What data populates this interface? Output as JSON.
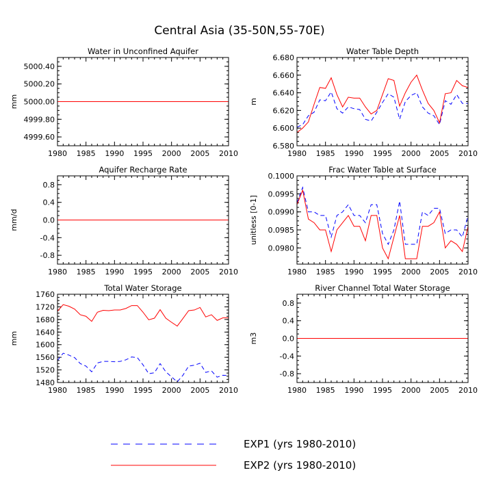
{
  "figure": {
    "title": "Central Asia (35-50N,55-70E)"
  },
  "colors": {
    "exp1": "#0000ff",
    "exp2": "#ff0000",
    "axis": "#000000",
    "background": "#ffffff"
  },
  "legend": {
    "items": [
      {
        "label": "EXP1 (yrs 1980-2010)",
        "style": "dashed",
        "color": "#0000ff"
      },
      {
        "label": "EXP2 (yrs 1980-2010)",
        "style": "solid",
        "color": "#ff0000"
      }
    ]
  },
  "chart_data": [
    {
      "type": "line",
      "title": "Water in Unconfined Aquifer",
      "ylabel": "mm",
      "xlim": [
        1980,
        2010
      ],
      "ylim": [
        4999.5,
        5000.5
      ],
      "xticks": [
        1980,
        1985,
        1990,
        1995,
        2000,
        2005,
        2010
      ],
      "yticks": [
        4999.6,
        4999.8,
        5000.0,
        5000.2,
        5000.4
      ],
      "ytick_labels": [
        "4999.60",
        "4999.80",
        "5000.00",
        "5000.20",
        "5000.40"
      ],
      "x": [
        1980,
        2010
      ],
      "series": [
        {
          "name": "EXP1 (yrs 1980-2010)",
          "values": [
            5000.0,
            5000.0
          ]
        },
        {
          "name": "EXP2 (yrs 1980-2010)",
          "values": [
            5000.0,
            5000.0
          ]
        }
      ]
    },
    {
      "type": "line",
      "title": "Water Table Depth",
      "ylabel": "m",
      "xlim": [
        1980,
        2010
      ],
      "ylim": [
        6.58,
        6.68
      ],
      "xticks": [
        1980,
        1985,
        1990,
        1995,
        2000,
        2005,
        2010
      ],
      "yticks": [
        6.58,
        6.6,
        6.62,
        6.64,
        6.66,
        6.68
      ],
      "ytick_labels": [
        "6.580",
        "6.600",
        "6.620",
        "6.640",
        "6.660",
        "6.680"
      ],
      "x": [
        1980,
        1981,
        1982,
        1983,
        1984,
        1985,
        1986,
        1987,
        1988,
        1989,
        1990,
        1991,
        1992,
        1993,
        1994,
        1995,
        1996,
        1997,
        1998,
        1999,
        2000,
        2001,
        2002,
        2003,
        2004,
        2005,
        2006,
        2007,
        2008,
        2009,
        2010
      ],
      "series": [
        {
          "name": "EXP1 (yrs 1980-2010)",
          "values": [
            6.601,
            6.604,
            6.614,
            6.618,
            6.632,
            6.631,
            6.641,
            6.622,
            6.617,
            6.624,
            6.622,
            6.621,
            6.61,
            6.608,
            6.618,
            6.629,
            6.639,
            6.635,
            6.61,
            6.63,
            6.637,
            6.64,
            6.624,
            6.617,
            6.614,
            6.604,
            6.631,
            6.627,
            6.638,
            6.628,
            6.628
          ]
        },
        {
          "name": "EXP2 (yrs 1980-2010)",
          "values": [
            6.595,
            6.6,
            6.607,
            6.627,
            6.646,
            6.645,
            6.657,
            6.638,
            6.624,
            6.635,
            6.634,
            6.634,
            6.624,
            6.616,
            6.62,
            6.638,
            6.656,
            6.654,
            6.625,
            6.64,
            6.652,
            6.66,
            6.643,
            6.628,
            6.62,
            6.606,
            6.639,
            6.64,
            6.654,
            6.648,
            6.646
          ]
        }
      ]
    },
    {
      "type": "line",
      "title": "Aquifer Recharge Rate",
      "ylabel": "mm/d",
      "xlim": [
        1980,
        2010
      ],
      "ylim": [
        -1.0,
        1.0
      ],
      "xticks": [
        1980,
        1985,
        1990,
        1995,
        2000,
        2005,
        2010
      ],
      "yticks": [
        -0.8,
        -0.4,
        0.0,
        0.4,
        0.8
      ],
      "ytick_labels": [
        "-0.8",
        "-0.4",
        "0.0",
        "0.4",
        "0.8"
      ],
      "x": [
        1980,
        2010
      ],
      "series": [
        {
          "name": "EXP1 (yrs 1980-2010)",
          "values": [
            0.0,
            0.0
          ]
        },
        {
          "name": "EXP2 (yrs 1980-2010)",
          "values": [
            0.0,
            0.0
          ]
        }
      ]
    },
    {
      "type": "line",
      "title": "Frac Water Table at Surface",
      "ylabel": "unitless [0-1]",
      "xlim": [
        1980,
        2010
      ],
      "ylim": [
        0.09755,
        0.1
      ],
      "xticks": [
        1980,
        1985,
        1990,
        1995,
        2000,
        2005,
        2010
      ],
      "yticks": [
        0.098,
        0.0985,
        0.099,
        0.0995,
        0.1
      ],
      "ytick_labels": [
        "0.0980",
        "0.0985",
        "0.0990",
        "0.0995",
        "0.1000"
      ],
      "x": [
        1980,
        1981,
        1982,
        1983,
        1984,
        1985,
        1986,
        1987,
        1988,
        1989,
        1990,
        1991,
        1992,
        1993,
        1994,
        1995,
        1996,
        1997,
        1998,
        1999,
        2000,
        2001,
        2002,
        2003,
        2004,
        2005,
        2006,
        2007,
        2008,
        2009,
        2010
      ],
      "series": [
        {
          "name": "EXP1 (yrs 1980-2010)",
          "values": [
            0.09925,
            0.09968,
            0.099,
            0.099,
            0.0989,
            0.0989,
            0.0983,
            0.0989,
            0.099,
            0.0992,
            0.0989,
            0.0989,
            0.0987,
            0.0992,
            0.0992,
            0.0984,
            0.0981,
            0.0985,
            0.0993,
            0.0981,
            0.0981,
            0.0981,
            0.099,
            0.0989,
            0.0991,
            0.0991,
            0.0984,
            0.0985,
            0.0985,
            0.0983,
            0.0989
          ]
        },
        {
          "name": "EXP2 (yrs 1980-2010)",
          "values": [
            0.0992,
            0.0996,
            0.0988,
            0.0987,
            0.0985,
            0.0985,
            0.0979,
            0.0985,
            0.0987,
            0.0989,
            0.0986,
            0.0986,
            0.0982,
            0.0989,
            0.0989,
            0.098,
            0.0977,
            0.0983,
            0.0989,
            0.0977,
            0.0977,
            0.0977,
            0.0986,
            0.0986,
            0.0987,
            0.099,
            0.098,
            0.0982,
            0.0981,
            0.0979,
            0.0986
          ]
        }
      ]
    },
    {
      "type": "line",
      "title": "Total Water Storage",
      "ylabel": "mm",
      "xlim": [
        1980,
        2010
      ],
      "ylim": [
        1480,
        1760
      ],
      "xticks": [
        1980,
        1985,
        1990,
        1995,
        2000,
        2005,
        2010
      ],
      "yticks": [
        1480,
        1520,
        1560,
        1600,
        1640,
        1680,
        1720,
        1760
      ],
      "ytick_labels": [
        "1480",
        "1520",
        "1560",
        "1600",
        "1640",
        "1680",
        "1720",
        "1760"
      ],
      "x": [
        1980,
        1981,
        1982,
        1983,
        1984,
        1985,
        1986,
        1987,
        1988,
        1989,
        1990,
        1991,
        1992,
        1993,
        1994,
        1995,
        1996,
        1997,
        1998,
        1999,
        2000,
        2001,
        2002,
        2003,
        2004,
        2005,
        2006,
        2007,
        2008,
        2009,
        2010
      ],
      "series": [
        {
          "name": "EXP1 (yrs 1980-2010)",
          "values": [
            1550,
            1573,
            1567,
            1559,
            1540,
            1532,
            1514,
            1542,
            1547,
            1547,
            1546,
            1547,
            1552,
            1561,
            1559,
            1536,
            1508,
            1511,
            1540,
            1514,
            1498,
            1482,
            1503,
            1532,
            1535,
            1541,
            1512,
            1517,
            1497,
            1503,
            1502
          ]
        },
        {
          "name": "EXP2 (yrs 1980-2010)",
          "values": [
            1706,
            1727,
            1722,
            1713,
            1695,
            1690,
            1674,
            1703,
            1709,
            1708,
            1710,
            1710,
            1715,
            1724,
            1724,
            1703,
            1679,
            1684,
            1711,
            1684,
            1671,
            1659,
            1683,
            1708,
            1710,
            1718,
            1688,
            1695,
            1677,
            1685,
            1685
          ]
        }
      ]
    },
    {
      "type": "line",
      "title": "River Channel Total Water Storage",
      "ylabel": "m3",
      "xlim": [
        1980,
        2010
      ],
      "ylim": [
        -1.0,
        1.0
      ],
      "xticks": [
        1980,
        1985,
        1990,
        1995,
        2000,
        2005,
        2010
      ],
      "yticks": [
        -0.8,
        -0.4,
        0.0,
        0.4,
        0.8
      ],
      "ytick_labels": [
        "-0.8",
        "-0.4",
        "0.0",
        "0.4",
        "0.8"
      ],
      "x": [
        1980,
        2010
      ],
      "series": [
        {
          "name": "EXP1 (yrs 1980-2010)",
          "values": [
            0.0,
            0.0
          ]
        },
        {
          "name": "EXP2 (yrs 1980-2010)",
          "values": [
            0.0,
            0.0
          ]
        }
      ]
    }
  ]
}
